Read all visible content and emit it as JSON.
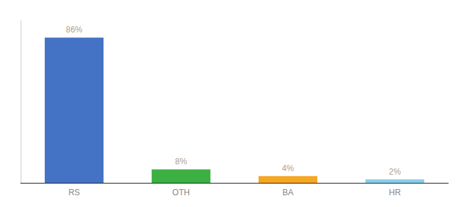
{
  "chart_data": {
    "type": "bar",
    "categories": [
      "RS",
      "OTH",
      "BA",
      "HR"
    ],
    "values": [
      86,
      8,
      4,
      2
    ],
    "value_labels": [
      "86%",
      "8%",
      "4%",
      "2%"
    ],
    "colors": [
      "#4472c4",
      "#3cb043",
      "#f5a623",
      "#87ceeb"
    ],
    "ylim": [
      0,
      96
    ],
    "grid": false,
    "data_labels": true,
    "tick_labels": "x"
  }
}
